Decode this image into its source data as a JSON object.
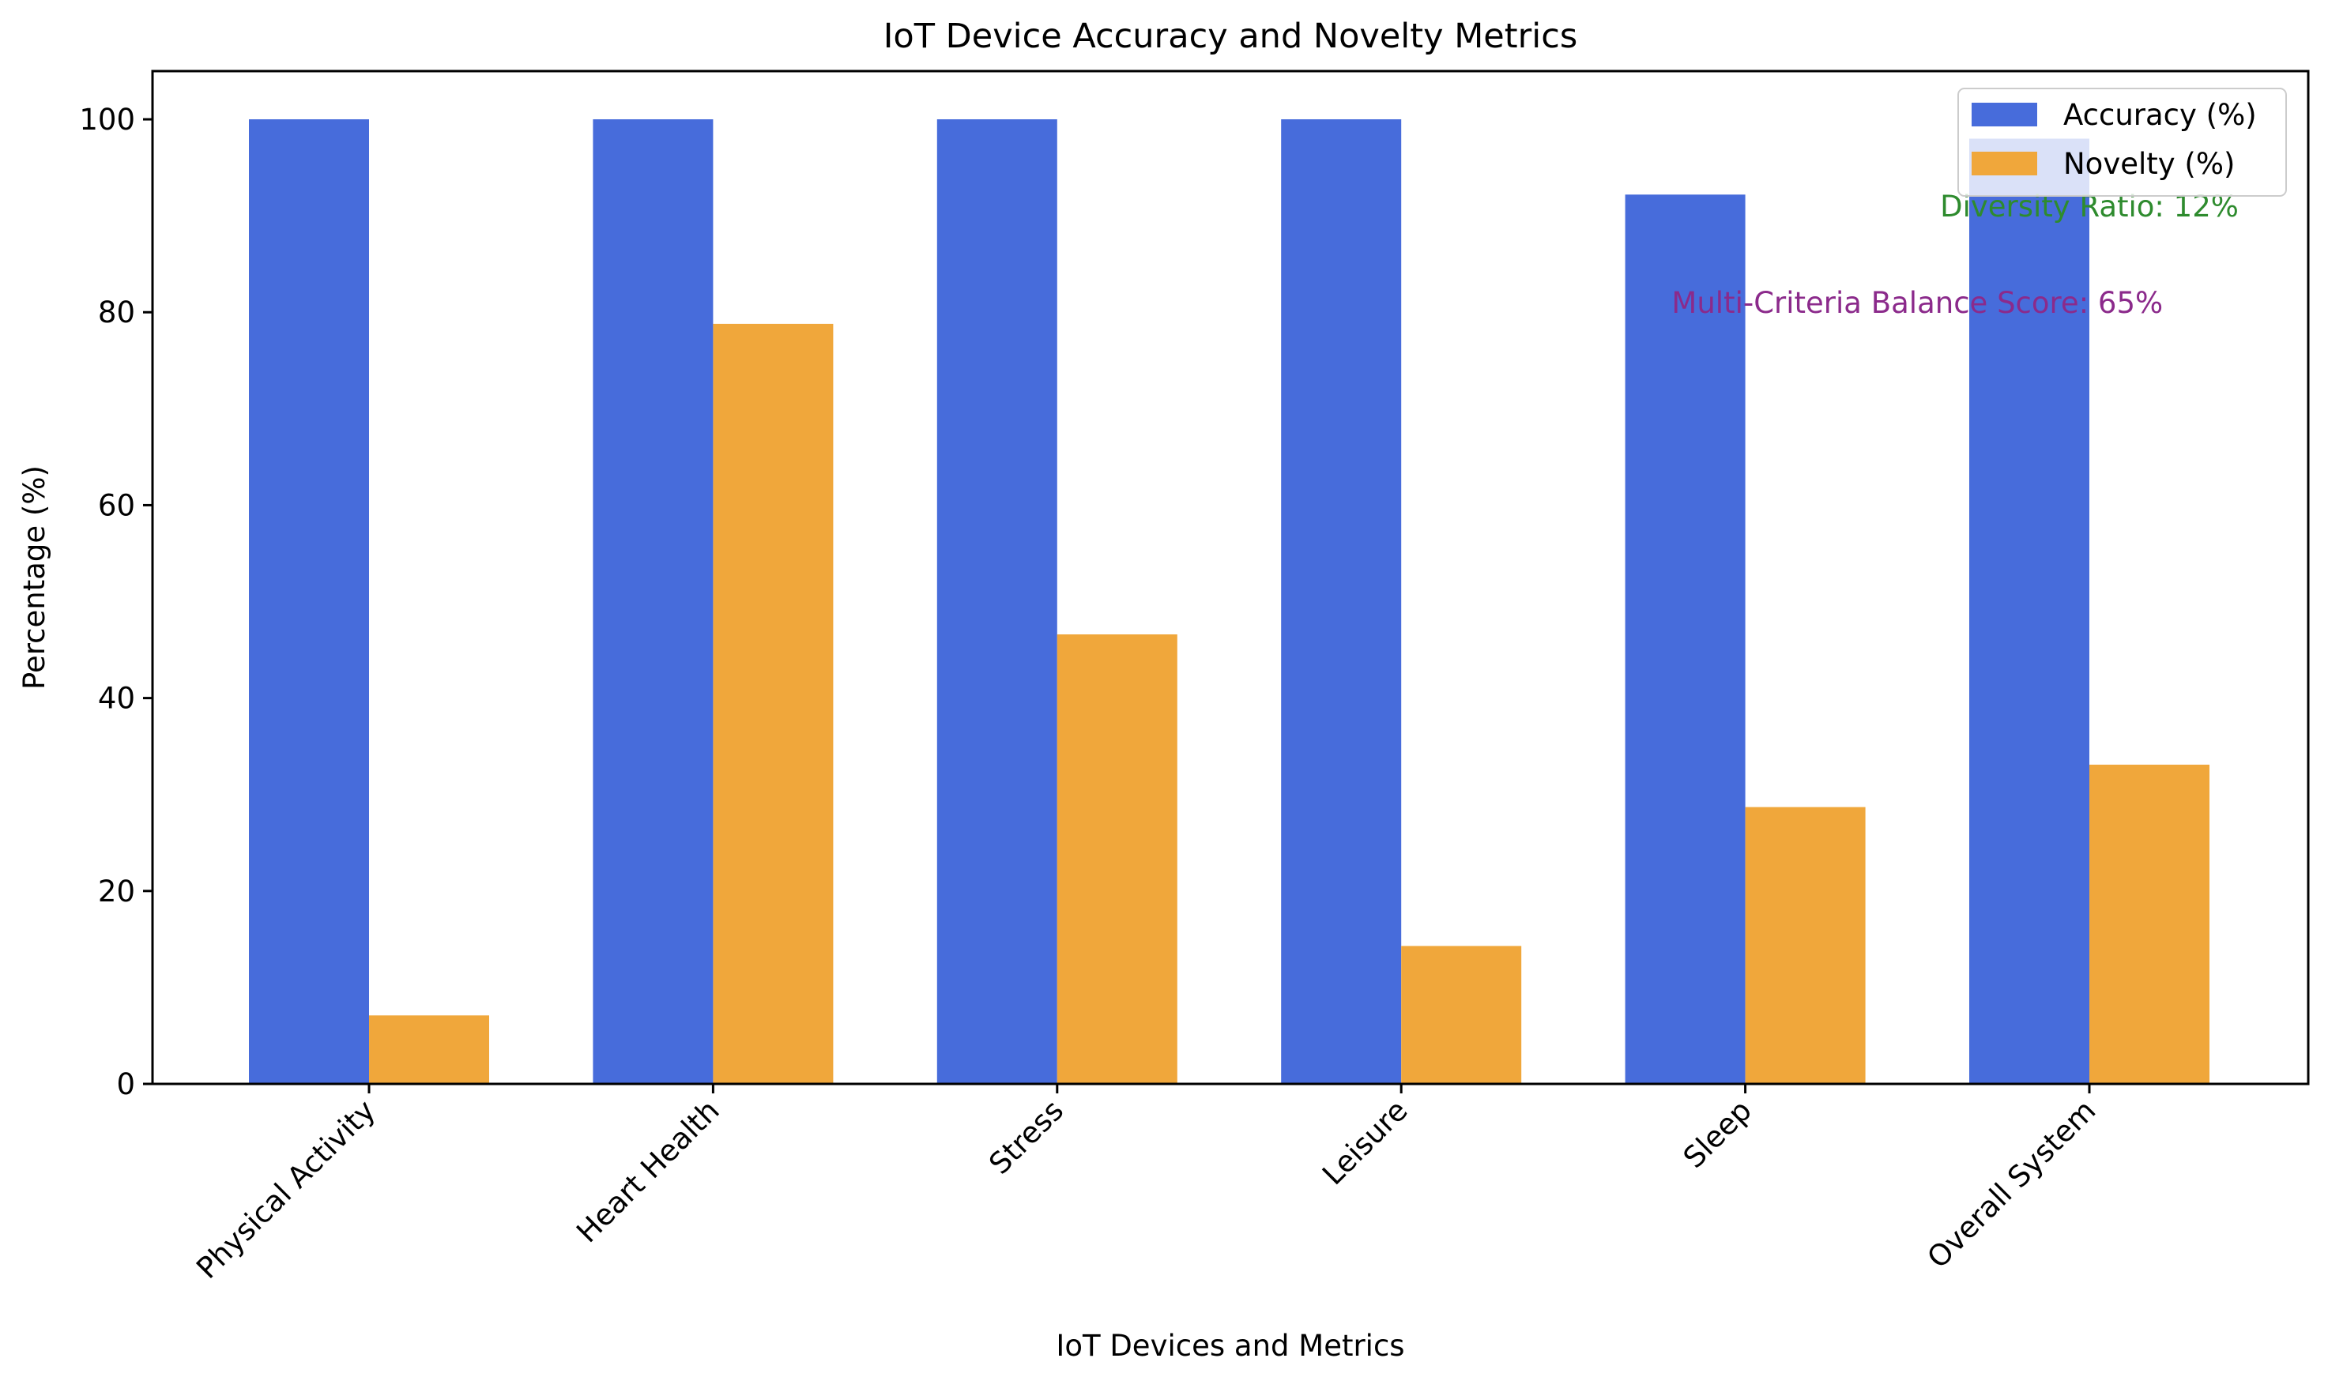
{
  "chart_data": {
    "type": "bar",
    "title": "IoT Device Accuracy and Novelty Metrics",
    "xlabel": "IoT Devices and Metrics",
    "ylabel": "Percentage (%)",
    "ylim": [
      0,
      105
    ],
    "yticks": [
      0,
      20,
      40,
      60,
      80,
      100
    ],
    "categories": [
      "Physical Activity",
      "Heart Health",
      "Stress",
      "Leisure",
      "Sleep",
      "Overall System"
    ],
    "series": [
      {
        "name": "Accuracy (%)",
        "color": "#476cdb",
        "values": [
          100,
          100,
          100,
          100,
          92.2,
          98
        ]
      },
      {
        "name": "Novelty (%)",
        "color": "#f0a73b",
        "values": [
          7.1,
          78.8,
          46.6,
          14.3,
          28.7,
          33.1
        ]
      }
    ],
    "legend_position": "top-right",
    "grid": false,
    "annotations": [
      {
        "text": "Diversity Ratio: 12%",
        "color": "#2e8b2e",
        "x": 5,
        "y": 91
      },
      {
        "text": "Multi-Criteria Balance Score: 65%",
        "color": "#8b2a8b",
        "x": 4.5,
        "y": 81
      }
    ]
  }
}
